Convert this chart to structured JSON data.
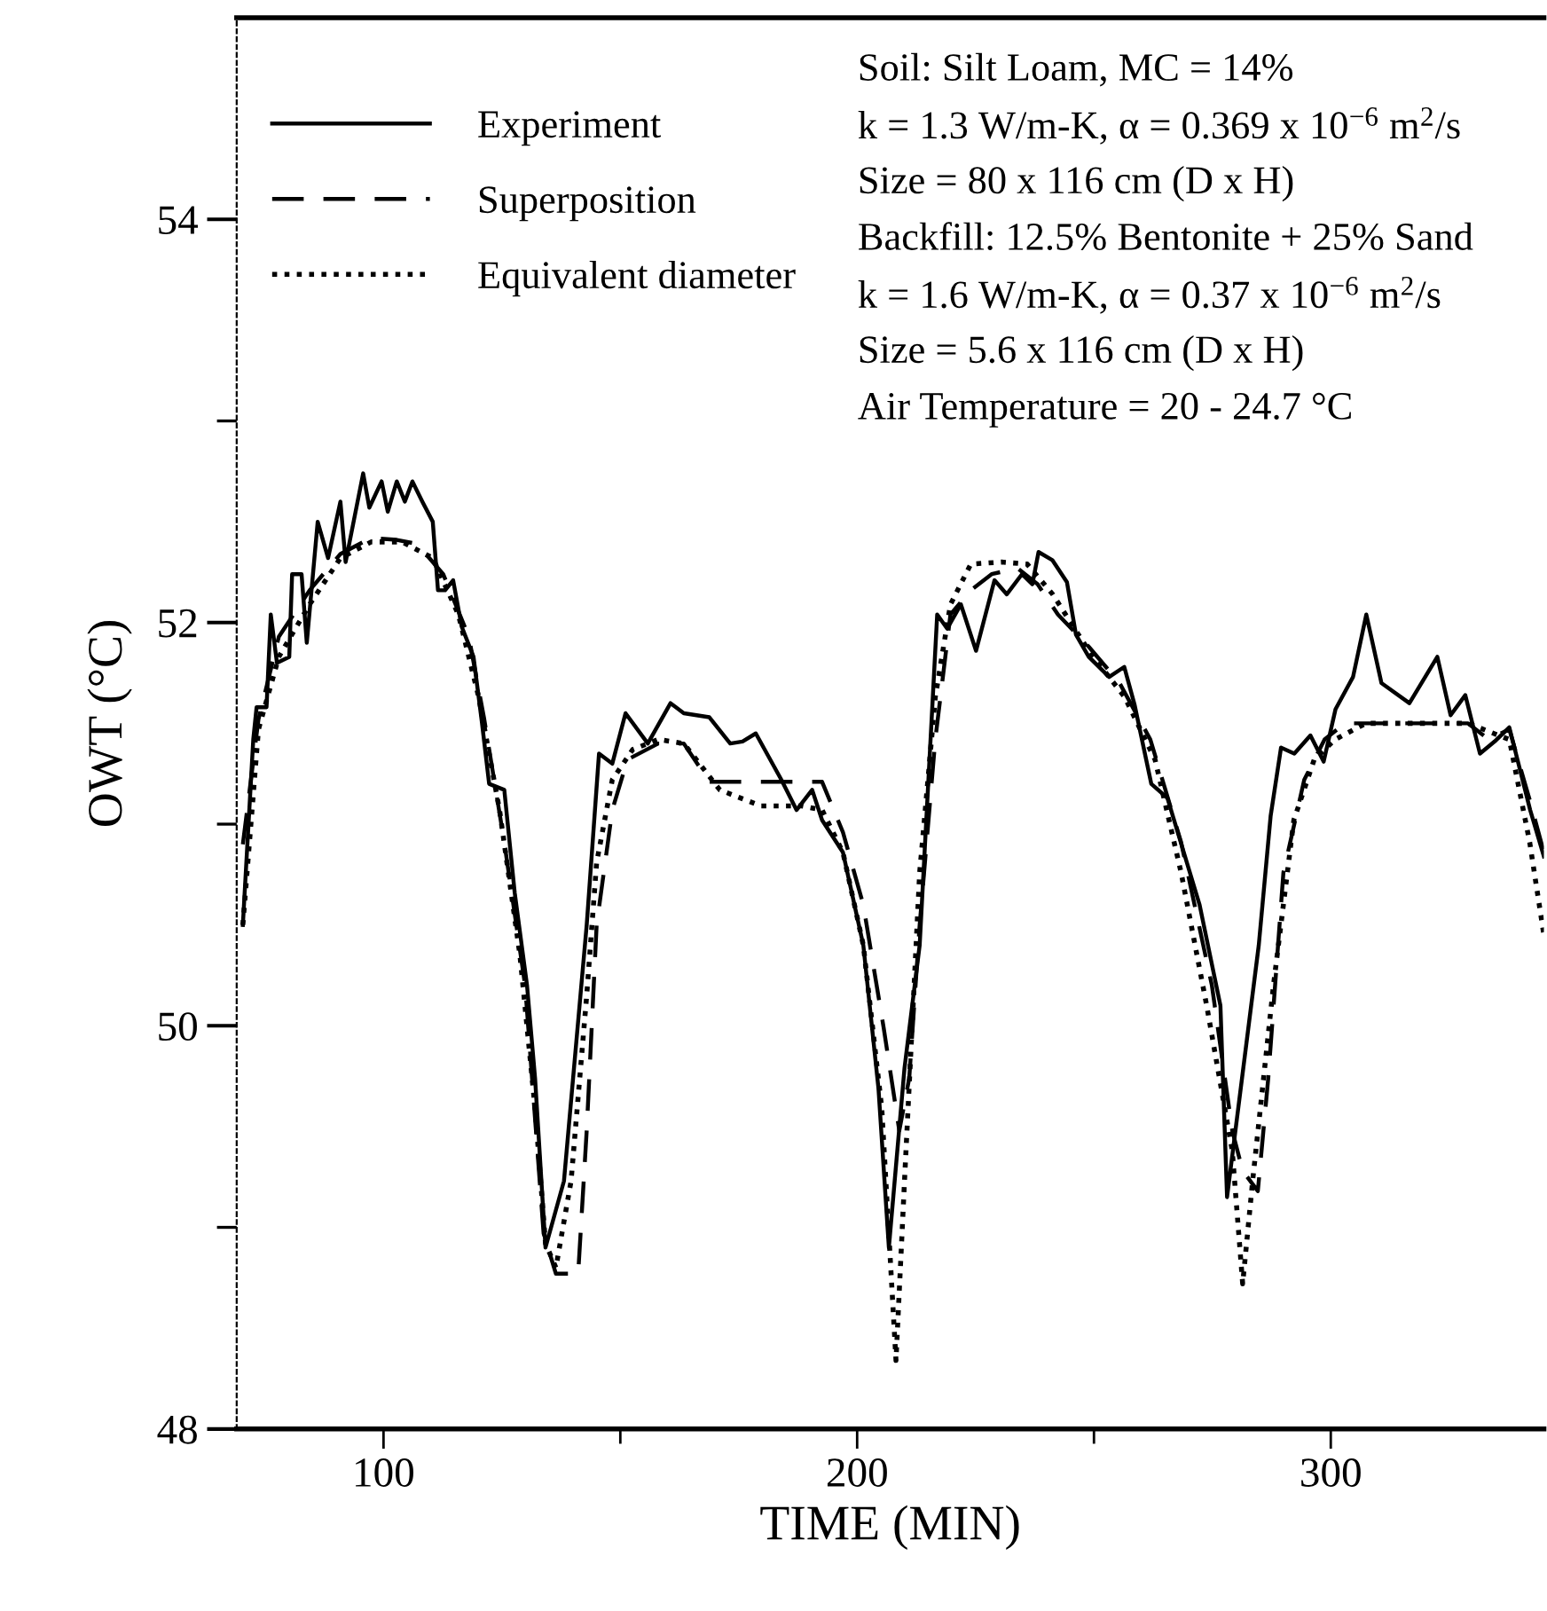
{
  "chart_data": {
    "type": "line",
    "xlabel": "TIME (MIN)",
    "ylabel": "OWT (°C)",
    "xlim": [
      69,
      345
    ],
    "ylim": [
      48,
      55
    ],
    "xticks": [
      100,
      {
        "value": 150,
        "label": null
      },
      200,
      {
        "value": 250,
        "label": null
      },
      300
    ],
    "yticks": [
      48,
      {
        "value": 49,
        "label": null
      },
      50,
      {
        "value": 51,
        "label": null
      },
      52,
      {
        "value": 53,
        "label": null
      },
      54
    ],
    "grid": false,
    "legend": "top left",
    "annotations": [
      "Soil: Silt Loam, MC = 14%",
      "k = 1.3 W/m-K, α = 0.369 x 10$^{−6}$ m$^{2}$/s",
      "Size = 80 x 116 cm (D x H)",
      "Backfill: 12.5% Bentonite + 25% Sand",
      "k = 1.6 W/m-K, α = 0.37 x 10$^{−6}$ m$^{2}$/s",
      "Size = 5.6 x 116 cm (D x H)",
      "Air Temperature = 20 - 24.7 °C"
    ],
    "series": [
      {
        "name": "Experiment",
        "color": "#000000",
        "line_style": "solid",
        "x": [
          70.3,
          72.5,
          73.2,
          75.3,
          76.2,
          77.5,
          80.1,
          80.7,
          82.7,
          83.8,
          86.1,
          88.3,
          90.9,
          92.0,
          95.7,
          97.0,
          99.6,
          100.9,
          102.8,
          104.5,
          106.1,
          108.2,
          110.4,
          111.5,
          113.0,
          114.7,
          116.5,
          119.0,
          120.8,
          122.3,
          125.5,
          127.7,
          130.3,
          132.0,
          134.2,
          138.1,
          142.9,
          145.5,
          148.3,
          151.1,
          155.8,
          160.6,
          163.4,
          168.8,
          173.2,
          175.8,
          178.6,
          184.0,
          187.2,
          190.5,
          192.6,
          197.0,
          201.3,
          204.5,
          206.7,
          210.0,
          213.2,
          216.9,
          219.0,
          221.9,
          225.1,
          229.0,
          231.6,
          234.8,
          237.0,
          238.3,
          241.2,
          244.3,
          246.2,
          248.9,
          253.2,
          256.4,
          258.6,
          262.1,
          265.5,
          272.3,
          276.7,
          278.1,
          284.8,
          287.3,
          289.5,
          292.3,
          295.7,
          298.5,
          301.0,
          304.7,
          307.5,
          310.7,
          316.6,
          322.5,
          325.3,
          328.4,
          331.5,
          334.6,
          337.7,
          342.1,
          345.0
        ],
        "values": [
          50.5,
          51.42,
          51.58,
          51.58,
          52.04,
          51.8,
          51.83,
          52.24,
          52.24,
          51.9,
          52.5,
          52.32,
          52.6,
          52.3,
          52.74,
          52.57,
          52.7,
          52.55,
          52.7,
          52.6,
          52.7,
          52.6,
          52.5,
          52.16,
          52.16,
          52.21,
          51.98,
          51.83,
          51.5,
          51.2,
          51.17,
          50.66,
          50.2,
          49.74,
          48.9,
          49.23,
          50.5,
          51.35,
          51.3,
          51.55,
          51.4,
          51.6,
          51.55,
          51.53,
          51.4,
          51.41,
          51.45,
          51.22,
          51.07,
          51.17,
          51.02,
          50.86,
          50.4,
          49.69,
          48.9,
          49.79,
          50.4,
          52.04,
          51.97,
          52.09,
          51.86,
          52.21,
          52.14,
          52.24,
          52.19,
          52.35,
          52.31,
          52.2,
          51.94,
          51.83,
          51.73,
          51.78,
          51.59,
          51.2,
          51.13,
          50.6,
          50.1,
          49.15,
          50.4,
          51.04,
          51.38,
          51.35,
          51.44,
          51.31,
          51.57,
          51.73,
          52.04,
          51.7,
          51.6,
          51.83,
          51.54,
          51.64,
          51.35,
          51.41,
          51.48,
          51.07,
          50.84
        ]
      },
      {
        "name": "Superposition",
        "color": "#000000",
        "line_style": "dashed",
        "x": [
          70.3,
          73.6,
          77.9,
          84.4,
          90.9,
          97.4,
          102.8,
          107.1,
          112.6,
          118.0,
          121.2,
          125.5,
          129.9,
          133.8,
          136.4,
          141.1,
          142.9,
          145.0,
          148.3,
          151.5,
          158.0,
          163.4,
          168.8,
          175.3,
          192.6,
          197.0,
          201.3,
          205.6,
          208.9,
          211.0,
          213.2,
          216.5,
          219.7,
          224.0,
          228.4,
          233.8,
          238.1,
          242.4,
          248.9,
          255.4,
          261.9,
          268.4,
          274.9,
          279.2,
          281.4,
          284.6,
          286.8,
          290.0,
          294.4,
          298.7,
          303.0,
          311.7,
          329.0,
          333.3,
          337.7,
          342.0,
          345.0
        ],
        "values": [
          50.9,
          51.52,
          51.93,
          52.16,
          52.34,
          52.42,
          52.41,
          52.39,
          52.24,
          51.93,
          51.53,
          50.91,
          50.2,
          48.97,
          48.77,
          48.77,
          49.48,
          50.5,
          51.07,
          51.32,
          51.4,
          51.4,
          51.21,
          51.21,
          51.21,
          50.96,
          50.6,
          49.99,
          49.48,
          49.74,
          50.5,
          51.42,
          52.04,
          52.16,
          52.24,
          52.27,
          52.19,
          52.04,
          51.88,
          51.7,
          51.42,
          50.91,
          50.2,
          49.48,
          49.28,
          49.18,
          49.74,
          50.76,
          51.22,
          51.42,
          51.5,
          51.5,
          51.5,
          51.42,
          51.47,
          51.12,
          50.86
        ]
      },
      {
        "name": "Equivalent diameter",
        "color": "#000000",
        "line_style": "dotted",
        "x": [
          70.3,
          73.6,
          77.9,
          84.4,
          90.9,
          97.4,
          103.9,
          110.4,
          115.8,
          120.1,
          124.5,
          128.8,
          132.0,
          134.2,
          136.4,
          139.6,
          142.9,
          145.0,
          148.3,
          152.6,
          158.0,
          163.4,
          171.0,
          179.7,
          188.3,
          192.6,
          197.0,
          201.3,
          205.2,
          208.2,
          210.0,
          213.2,
          216.5,
          219.7,
          224.0,
          230.5,
          235.9,
          241.3,
          248.9,
          256.5,
          262.9,
          268.4,
          273.8,
          279.2,
          281.4,
          283.5,
          287.9,
          292.2,
          296.5,
          300.9,
          307.4,
          329.0,
          334.4,
          337.7,
          342.0,
          345.0
        ],
        "values": [
          50.5,
          51.47,
          51.83,
          52.09,
          52.32,
          52.4,
          52.4,
          52.32,
          52.04,
          51.63,
          51.07,
          50.35,
          49.59,
          48.92,
          48.8,
          49.23,
          50.15,
          50.81,
          51.22,
          51.37,
          51.42,
          51.4,
          51.17,
          51.09,
          51.09,
          51.07,
          50.86,
          50.4,
          49.59,
          48.34,
          49.23,
          50.76,
          51.63,
          52.09,
          52.29,
          52.3,
          52.29,
          52.14,
          51.86,
          51.63,
          51.32,
          50.76,
          50.1,
          49.38,
          48.72,
          49.23,
          50.2,
          51.02,
          51.32,
          51.42,
          51.5,
          51.5,
          51.45,
          51.42,
          50.91,
          50.45
        ]
      }
    ]
  }
}
